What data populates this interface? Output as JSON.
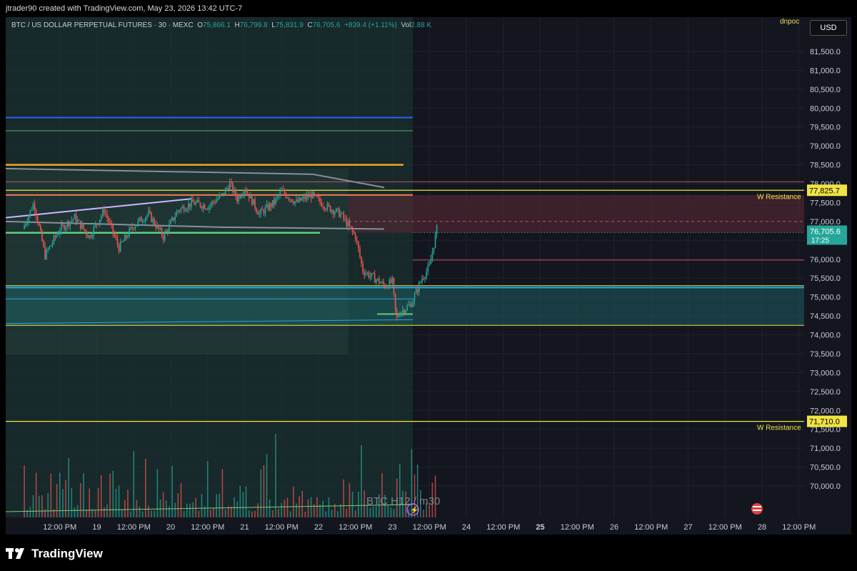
{
  "header": {
    "text": "jtrader90 created with TradingView.com, May 23, 2026 13:42 UTC-7"
  },
  "legend": {
    "symbol": "BTC / US DOLLAR PERPETUAL FUTURES · 30 · MEXC",
    "o_label": "O",
    "o_value": "75,866.1",
    "h_label": "H",
    "h_value": "76,799.8",
    "l_label": "L",
    "l_value": "75,831.9",
    "c_label": "C",
    "c_value": "76,705.6",
    "change": "+839.4 (+1.11%)",
    "vol_label": "Vol",
    "vol_value": "2.88 K"
  },
  "currency_button": "USD",
  "indicator_label": "dnpoc",
  "watermark": "BTC H12 / m30",
  "footer": {
    "brand": "TradingView"
  },
  "colors": {
    "background": "#14161f",
    "up": "#26a69a",
    "down": "#ef5350",
    "resistance": "#f0e442",
    "blue_line": "#2962ff",
    "orange_line": "#f5a623"
  },
  "chart_data": {
    "type": "candlestick",
    "y_axis": {
      "ylim": [
        69800,
        82000
      ],
      "ticks": [
        "81,500.0",
        "81,000.0",
        "80,500.0",
        "80,000.0",
        "79,500.0",
        "79,000.0",
        "78,500.0",
        "78,000.0",
        "77,500.0",
        "77,000.0",
        "76,500.0",
        "76,000.0",
        "75,500.0",
        "75,000.0",
        "74,500.0",
        "74,000.0",
        "73,500.0",
        "73,000.0",
        "72,500.0",
        "72,000.0",
        "71,500.0",
        "71,000.0",
        "70,500.0",
        "70,000.0"
      ]
    },
    "x_axis": {
      "ticks": [
        {
          "label": "12:00 PM",
          "t": 0.5
        },
        {
          "label": "19",
          "t": 1
        },
        {
          "label": "12:00 PM",
          "t": 1.5
        },
        {
          "label": "20",
          "t": 2
        },
        {
          "label": "12:00 PM",
          "t": 2.5
        },
        {
          "label": "21",
          "t": 3
        },
        {
          "label": "12:00 PM",
          "t": 3.5
        },
        {
          "label": "22",
          "t": 4
        },
        {
          "label": "12:00 PM",
          "t": 4.5
        },
        {
          "label": "23",
          "t": 5
        },
        {
          "label": "12:00 PM",
          "t": 5.5
        },
        {
          "label": "24",
          "t": 6
        },
        {
          "label": "12:00 PM",
          "t": 6.5
        },
        {
          "label": "25",
          "t": 7
        },
        {
          "label": "12:00 PM",
          "t": 7.5
        },
        {
          "label": "26",
          "t": 8
        },
        {
          "label": "12:00 PM",
          "t": 8.5
        },
        {
          "label": "27",
          "t": 9
        },
        {
          "label": "12:00 PM",
          "t": 9.5
        },
        {
          "label": "28",
          "t": 10
        },
        {
          "label": "12:00 PM",
          "t": 10.5
        }
      ],
      "range": [
        0,
        10.8
      ]
    },
    "price_path": [
      [
        0.0,
        76800
      ],
      [
        0.15,
        77500
      ],
      [
        0.3,
        76100
      ],
      [
        0.5,
        76800
      ],
      [
        0.7,
        77100
      ],
      [
        0.9,
        76600
      ],
      [
        1.1,
        77300
      ],
      [
        1.3,
        76300
      ],
      [
        1.5,
        76900
      ],
      [
        1.7,
        77200
      ],
      [
        1.9,
        76600
      ],
      [
        2.1,
        77300
      ],
      [
        2.3,
        77500
      ],
      [
        2.5,
        77400
      ],
      [
        2.7,
        77700
      ],
      [
        2.8,
        78000
      ],
      [
        2.9,
        77600
      ],
      [
        3.0,
        77900
      ],
      [
        3.2,
        77200
      ],
      [
        3.4,
        77500
      ],
      [
        3.5,
        77800
      ],
      [
        3.7,
        77500
      ],
      [
        3.9,
        77700
      ],
      [
        4.1,
        77400
      ],
      [
        4.3,
        77200
      ],
      [
        4.5,
        76600
      ],
      [
        4.6,
        75700
      ],
      [
        4.75,
        75500
      ],
      [
        4.9,
        75300
      ],
      [
        5.0,
        75400
      ],
      [
        5.05,
        74400
      ],
      [
        5.1,
        74600
      ],
      [
        5.25,
        74800
      ],
      [
        5.4,
        75500
      ],
      [
        5.5,
        75800
      ],
      [
        5.6,
        76800
      ]
    ],
    "last_price": "76,705.6",
    "countdown": "17:25",
    "levels": [
      {
        "name": "W Resistance",
        "price": 77825.7,
        "label": "77,825.7"
      },
      {
        "name": "W Resistance",
        "price": 71710,
        "label": "71,710.0"
      }
    ]
  }
}
